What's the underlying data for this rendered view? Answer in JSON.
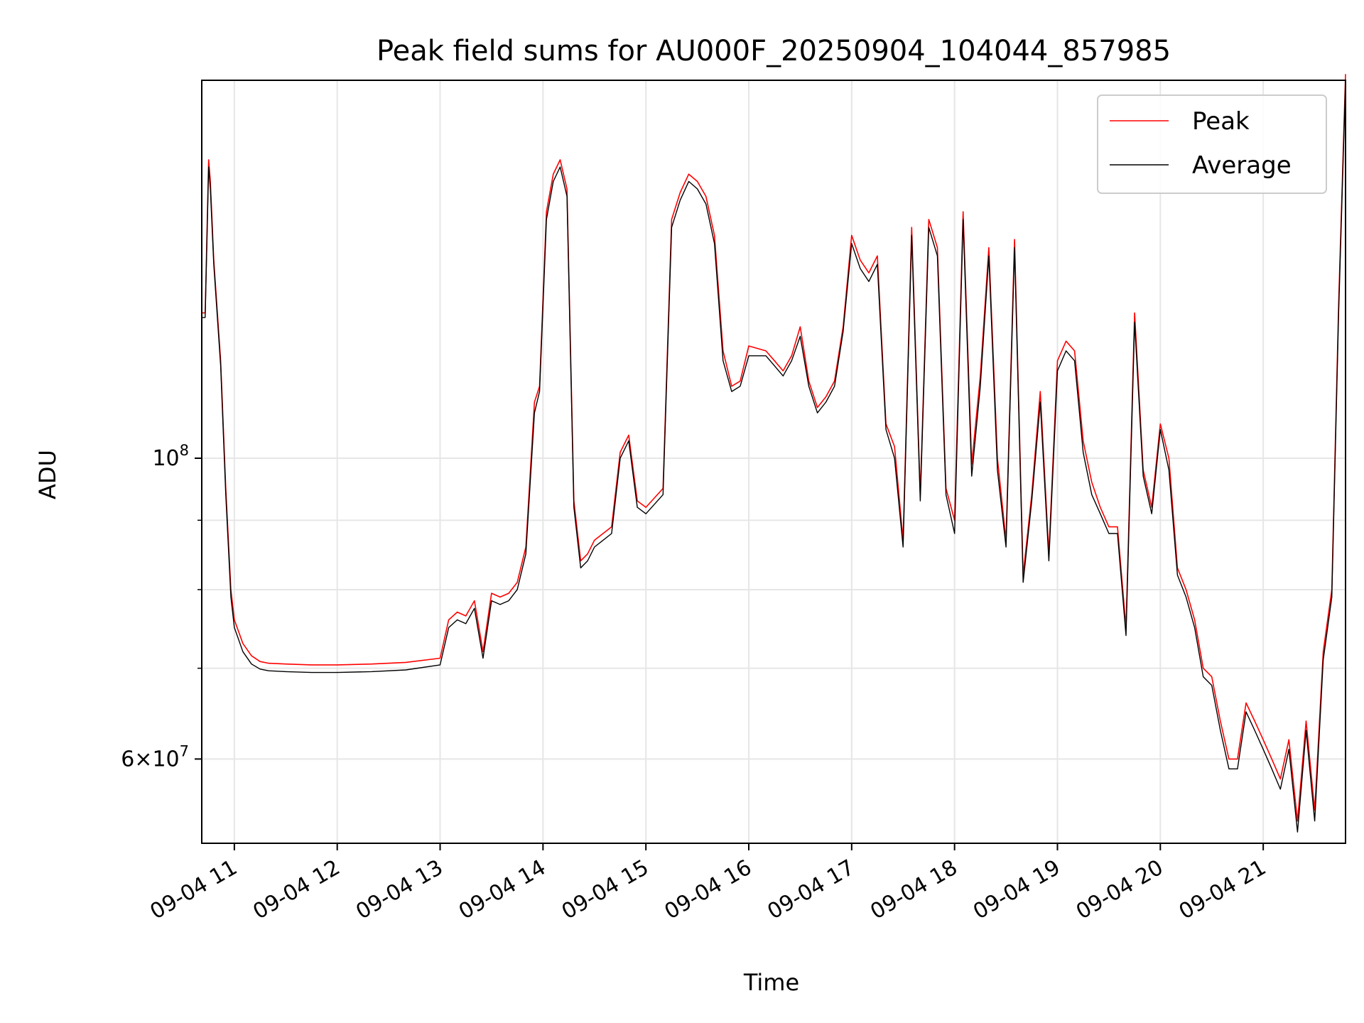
{
  "chart_data": {
    "type": "line",
    "title": "Peak field sums for AU000F_20250904_104044_857985",
    "xlabel": "Time",
    "ylabel": "ADU",
    "yscale": "log",
    "ylim": [
      52000000,
      190000000
    ],
    "xlim": [
      "09-04 10:41",
      "09-04 21:48"
    ],
    "grid": true,
    "legend_position": "top-right",
    "x_ticks": [
      "09-04 11",
      "09-04 12",
      "09-04 13",
      "09-04 14",
      "09-04 15",
      "09-04 16",
      "09-04 17",
      "09-04 18",
      "09-04 19",
      "09-04 20",
      "09-04 21"
    ],
    "y_tick_labels": [
      {
        "value": 100000000,
        "label": "10^8"
      },
      {
        "value": 60000000,
        "label": "6×10^7"
      }
    ],
    "y_minor_ticks": [
      70000000,
      80000000,
      90000000
    ],
    "series": [
      {
        "name": "Peak",
        "color": "#ff0000"
      },
      {
        "name": "Average",
        "color": "#000000"
      }
    ],
    "x": [
      "09-04 10:41",
      "09-04 10:43",
      "09-04 10:45",
      "09-04 10:46",
      "09-04 10:48",
      "09-04 10:52",
      "09-04 10:55",
      "09-04 10:58",
      "09-04 11:00",
      "09-04 11:05",
      "09-04 11:10",
      "09-04 11:15",
      "09-04 11:20",
      "09-04 11:30",
      "09-04 11:45",
      "09-04 12:00",
      "09-04 12:20",
      "09-04 12:40",
      "09-04 13:00",
      "09-04 13:05",
      "09-04 13:10",
      "09-04 13:15",
      "09-04 13:20",
      "09-04 13:25",
      "09-04 13:30",
      "09-04 13:35",
      "09-04 13:40",
      "09-04 13:45",
      "09-04 13:50",
      "09-04 13:55",
      "09-04 13:58",
      "09-04 14:02",
      "09-04 14:06",
      "09-04 14:10",
      "09-04 14:14",
      "09-04 14:18",
      "09-04 14:22",
      "09-04 14:26",
      "09-04 14:30",
      "09-04 14:40",
      "09-04 14:45",
      "09-04 14:50",
      "09-04 14:55",
      "09-04 15:00",
      "09-04 15:10",
      "09-04 15:15",
      "09-04 15:20",
      "09-04 15:25",
      "09-04 15:30",
      "09-04 15:35",
      "09-04 15:40",
      "09-04 15:45",
      "09-04 15:50",
      "09-04 15:55",
      "09-04 16:00",
      "09-04 16:10",
      "09-04 16:15",
      "09-04 16:20",
      "09-04 16:25",
      "09-04 16:30",
      "09-04 16:35",
      "09-04 16:40",
      "09-04 16:45",
      "09-04 16:50",
      "09-04 16:55",
      "09-04 17:00",
      "09-04 17:05",
      "09-04 17:10",
      "09-04 17:15",
      "09-04 17:20",
      "09-04 17:25",
      "09-04 17:30",
      "09-04 17:35",
      "09-04 17:40",
      "09-04 17:45",
      "09-04 17:50",
      "09-04 17:55",
      "09-04 18:00",
      "09-04 18:05",
      "09-04 18:10",
      "09-04 18:15",
      "09-04 18:20",
      "09-04 18:25",
      "09-04 18:30",
      "09-04 18:35",
      "09-04 18:40",
      "09-04 18:45",
      "09-04 18:50",
      "09-04 18:55",
      "09-04 19:00",
      "09-04 19:05",
      "09-04 19:10",
      "09-04 19:15",
      "09-04 19:20",
      "09-04 19:25",
      "09-04 19:30",
      "09-04 19:35",
      "09-04 19:40",
      "09-04 19:45",
      "09-04 19:50",
      "09-04 19:55",
      "09-04 20:00",
      "09-04 20:05",
      "09-04 20:10",
      "09-04 20:15",
      "09-04 20:20",
      "09-04 20:25",
      "09-04 20:30",
      "09-04 20:35",
      "09-04 20:40",
      "09-04 20:45",
      "09-04 20:50",
      "09-04 20:55",
      "09-04 21:00",
      "09-04 21:05",
      "09-04 21:10",
      "09-04 21:15",
      "09-04 21:20",
      "09-04 21:25",
      "09-04 21:30",
      "09-04 21:35",
      "09-04 21:40",
      "09-04 21:44",
      "09-04 21:48"
    ],
    "peak": [
      128,
      128,
      166,
      160,
      140,
      118,
      95,
      80,
      76,
      73,
      71.5,
      70.8,
      70.6,
      70.5,
      70.4,
      70.4,
      70.5,
      70.7,
      71.2,
      76,
      77,
      76.5,
      78.5,
      72,
      79.5,
      79,
      79.5,
      81,
      86,
      110,
      113,
      152,
      162,
      166,
      158,
      93,
      84,
      85,
      87,
      89,
      101,
      104,
      93,
      92,
      95,
      150,
      157,
      162,
      160,
      156,
      146,
      120,
      113,
      114,
      121,
      120,
      118,
      116,
      119,
      125,
      114,
      109,
      111,
      114,
      125,
      146,
      140,
      137,
      141,
      106,
      102,
      87,
      148,
      94,
      150,
      143,
      95,
      90,
      152,
      99,
      115,
      143,
      100,
      87,
      145,
      82,
      94,
      112,
      85,
      118,
      122,
      120,
      103,
      96,
      92,
      89,
      89,
      75,
      128,
      98,
      92,
      106,
      100,
      83,
      80,
      76,
      70,
      69,
      64,
      60,
      60,
      66,
      64,
      62,
      60,
      58,
      62,
      54,
      64,
      55,
      72,
      80,
      130,
      192
    ],
    "average": [
      127,
      127,
      164,
      158,
      139,
      117,
      94,
      79,
      75,
      72,
      70.5,
      69.9,
      69.7,
      69.6,
      69.5,
      69.5,
      69.6,
      69.8,
      70.4,
      75,
      76,
      75.5,
      77.5,
      71.2,
      78.5,
      78,
      78.5,
      80,
      85,
      108,
      112,
      150,
      160,
      164,
      156,
      92,
      83,
      84,
      86,
      88,
      100,
      103,
      92,
      91,
      94,
      148,
      155,
      160,
      158,
      154,
      144,
      118,
      112,
      113,
      119,
      119,
      117,
      115,
      118,
      123,
      113,
      108,
      110,
      113,
      124,
      144,
      138,
      135,
      139,
      105,
      100,
      86,
      146,
      93,
      148,
      141,
      94,
      88,
      150,
      97,
      113,
      141,
      98,
      86,
      143,
      81,
      93,
      110,
      84,
      116,
      120,
      118,
      101,
      94,
      91,
      88,
      88,
      74,
      126,
      97,
      91,
      105,
      98,
      82,
      79,
      75,
      69,
      68,
      63,
      59,
      59,
      65,
      63,
      61,
      59,
      57,
      61,
      53,
      63,
      54,
      71,
      79,
      128,
      190
    ]
  }
}
